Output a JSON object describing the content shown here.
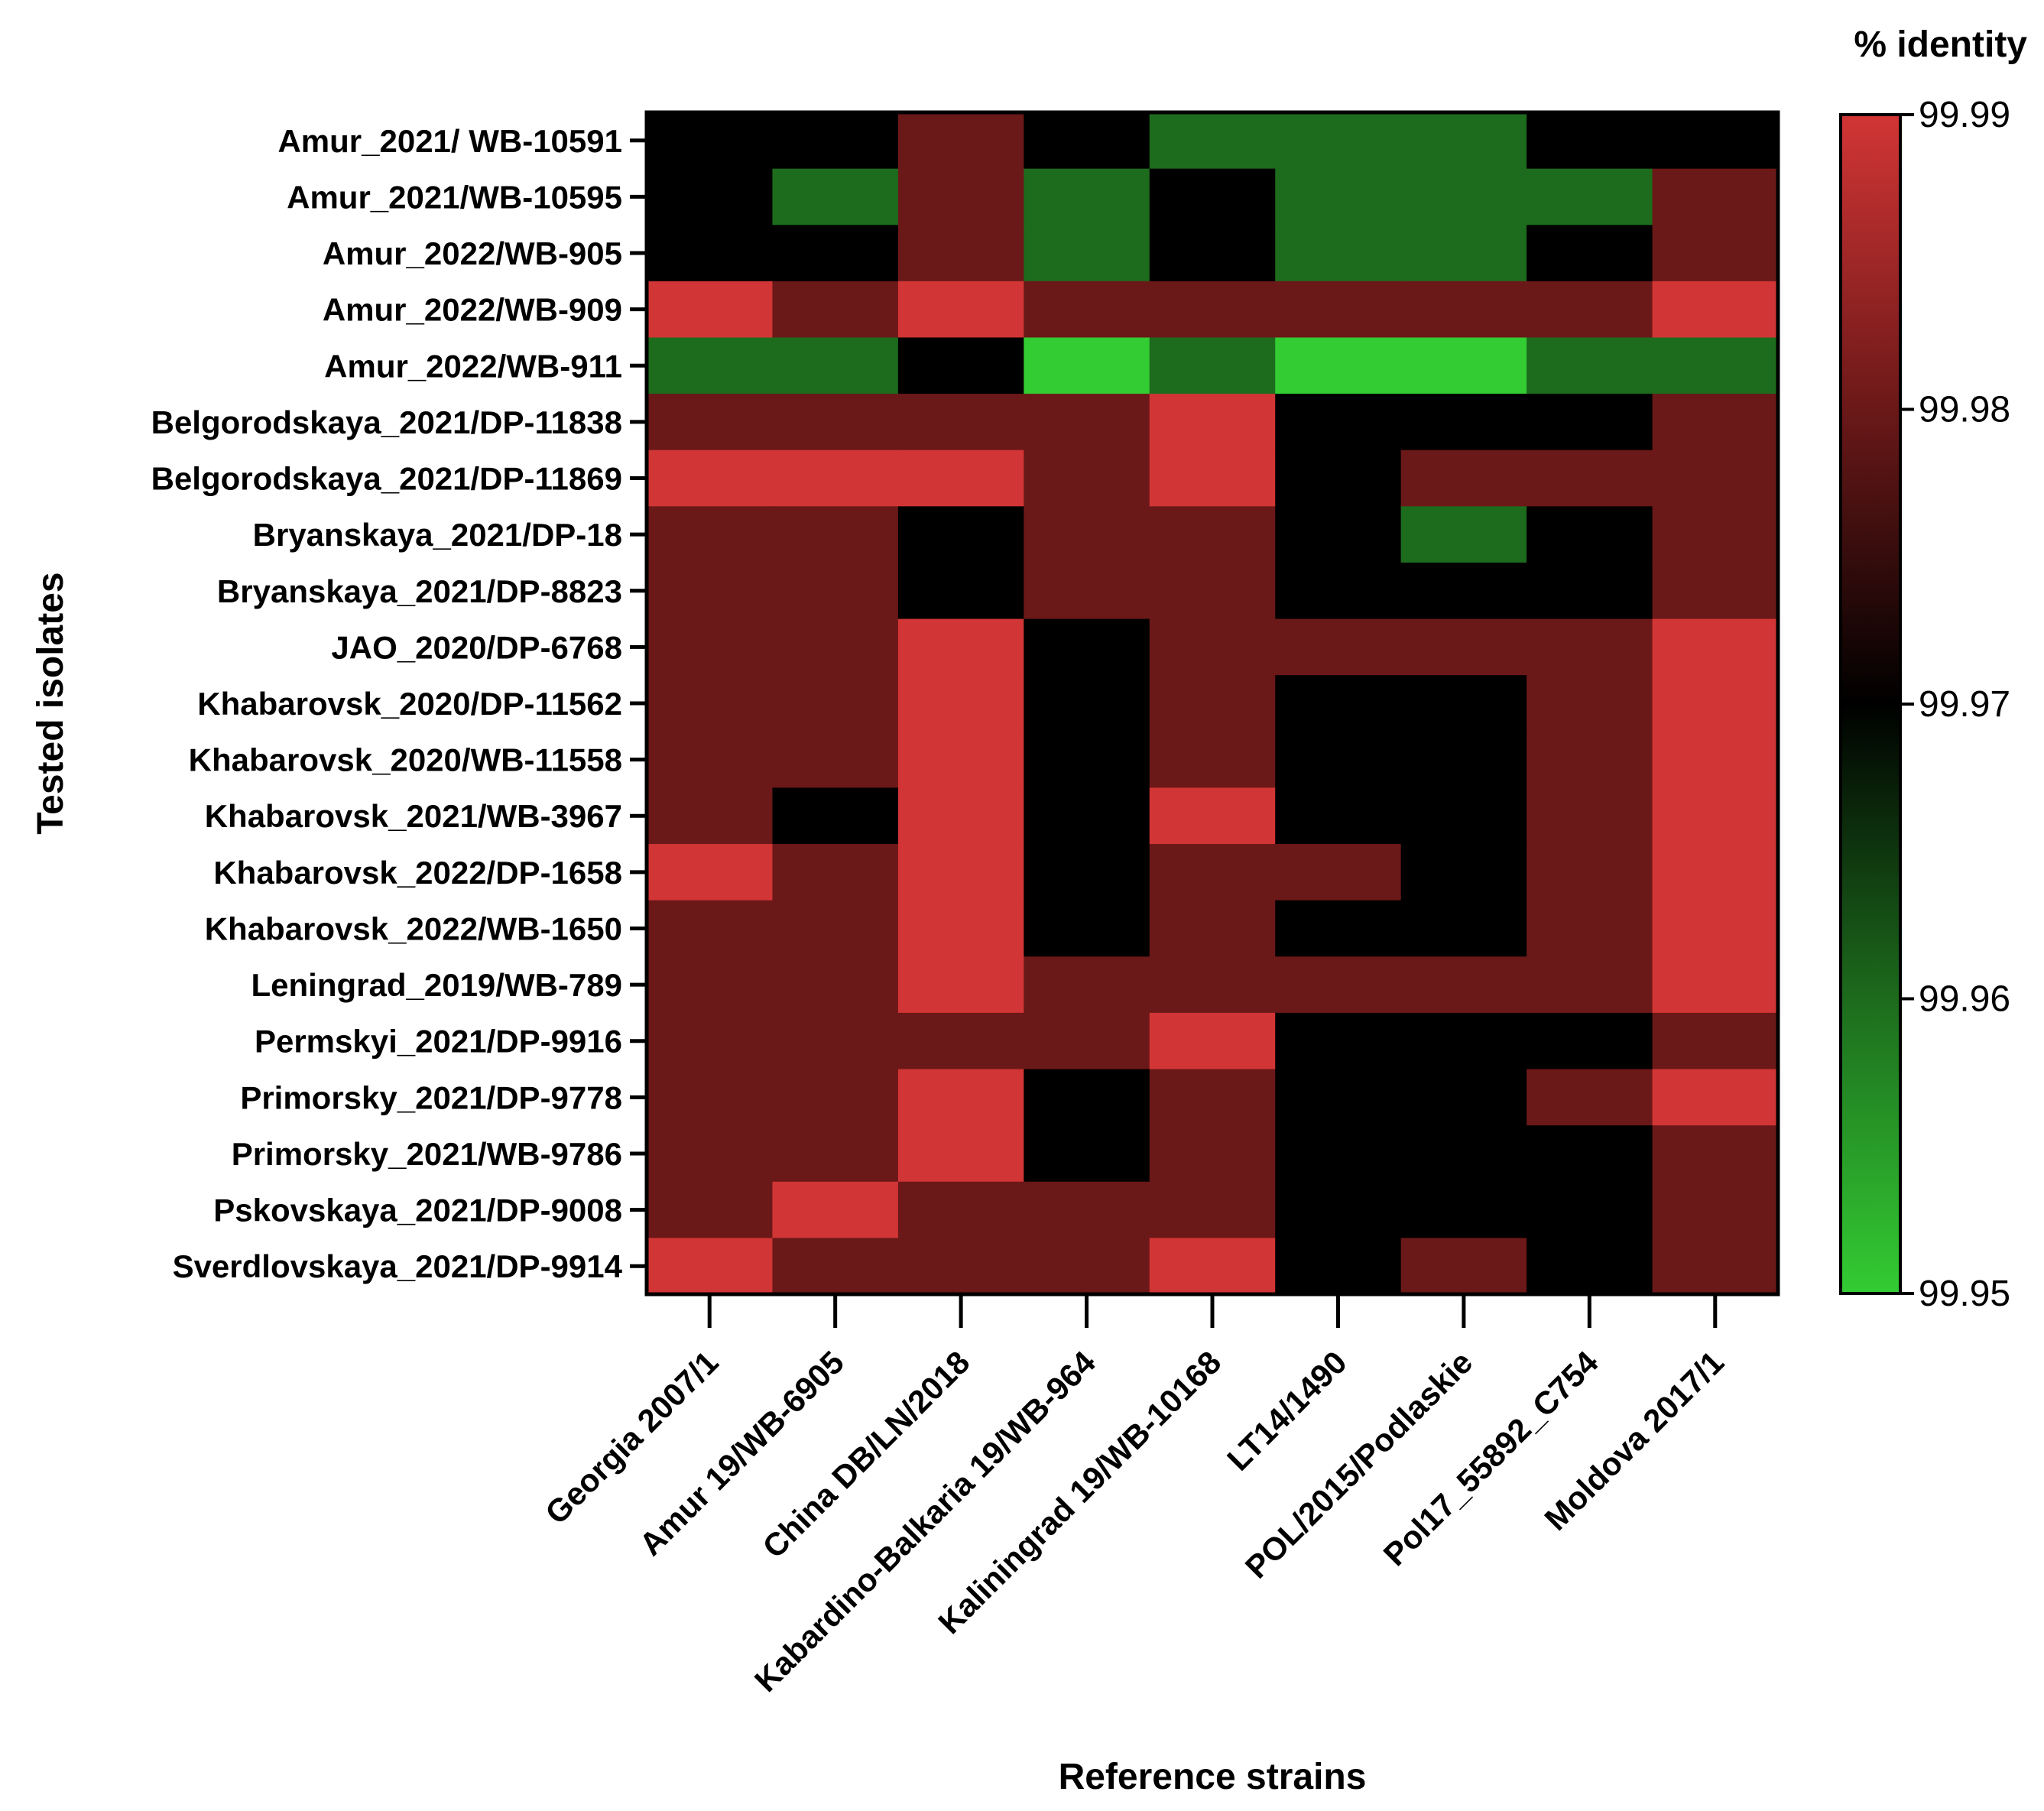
{
  "chart_data": {
    "type": "heatmap",
    "title": "",
    "xlabel": "Reference strains",
    "ylabel": "Tested isolates",
    "colorbar": {
      "title": "% identity",
      "min": 99.95,
      "max": 99.99,
      "ticks": [
        "99.99",
        "99.98",
        "99.97",
        "99.96",
        "99.95"
      ],
      "tick_values": [
        99.99,
        99.98,
        99.97,
        99.96,
        99.95
      ],
      "stops": [
        {
          "value": 99.95,
          "color": "#33cc33"
        },
        {
          "value": 99.96,
          "color": "#1d6b1d"
        },
        {
          "value": 99.97,
          "color": "#000000"
        },
        {
          "value": 99.98,
          "color": "#6b1818"
        },
        {
          "value": 99.99,
          "color": "#d23535"
        }
      ]
    },
    "x_categories": [
      "Georgia 2007/1",
      "Amur 19/WB-6905",
      "China DB/LN/2018",
      "Kabardino-Balkaria 19/WB-964",
      "Kaliningrad 19/WB-10168",
      "LT14/1490",
      "POL/2015/Podlaskie",
      "Pol17_55892_C754",
      "Moldova 2017/1"
    ],
    "y_categories": [
      "Amur_2021/ WB-10591",
      "Amur_2021/WB-10595",
      "Amur_2022/WB-905",
      "Amur_2022/WB-909",
      "Amur_2022/WB-911",
      "Belgorodskaya_2021/DP-11838",
      "Belgorodskaya_2021/DP-11869",
      "Bryanskaya_2021/DP-18",
      "Bryanskaya_2021/DP-8823",
      "JAO_2020/DP-6768",
      "Khabarovsk_2020/DP-11562",
      "Khabarovsk_2020/WB-11558",
      "Khabarovsk_2021/WB-3967",
      "Khabarovsk_2022/DP-1658",
      "Khabarovsk_2022/WB-1650",
      "Leningrad_2019/WB-789",
      "Permskyi_2021/DP-9916",
      "Primorsky_2021/DP-9778",
      "Primorsky_2021/WB-9786",
      "Pskovskaya_2021/DP-9008",
      "Sverdlovskaya_2021/DP-9914"
    ],
    "values": [
      [
        99.97,
        99.97,
        99.98,
        99.97,
        99.96,
        99.96,
        99.96,
        99.97,
        99.97
      ],
      [
        99.97,
        99.96,
        99.98,
        99.96,
        99.97,
        99.96,
        99.96,
        99.96,
        99.98
      ],
      [
        99.97,
        99.97,
        99.98,
        99.96,
        99.97,
        99.96,
        99.96,
        99.97,
        99.98
      ],
      [
        99.99,
        99.98,
        99.99,
        99.98,
        99.98,
        99.98,
        99.98,
        99.98,
        99.99
      ],
      [
        99.96,
        99.96,
        99.97,
        99.95,
        99.96,
        99.95,
        99.95,
        99.96,
        99.96
      ],
      [
        99.98,
        99.98,
        99.98,
        99.98,
        99.99,
        99.97,
        99.97,
        99.97,
        99.98
      ],
      [
        99.99,
        99.99,
        99.99,
        99.98,
        99.99,
        99.97,
        99.98,
        99.98,
        99.98
      ],
      [
        99.98,
        99.98,
        99.97,
        99.98,
        99.98,
        99.97,
        99.96,
        99.97,
        99.98
      ],
      [
        99.98,
        99.98,
        99.97,
        99.98,
        99.98,
        99.97,
        99.97,
        99.97,
        99.98
      ],
      [
        99.98,
        99.98,
        99.99,
        99.97,
        99.98,
        99.98,
        99.98,
        99.98,
        99.99
      ],
      [
        99.98,
        99.98,
        99.99,
        99.97,
        99.98,
        99.97,
        99.97,
        99.98,
        99.99
      ],
      [
        99.98,
        99.98,
        99.99,
        99.97,
        99.98,
        99.97,
        99.97,
        99.98,
        99.99
      ],
      [
        99.98,
        99.97,
        99.99,
        99.97,
        99.99,
        99.97,
        99.97,
        99.98,
        99.99
      ],
      [
        99.99,
        99.98,
        99.99,
        99.97,
        99.98,
        99.98,
        99.97,
        99.98,
        99.99
      ],
      [
        99.98,
        99.98,
        99.99,
        99.97,
        99.98,
        99.97,
        99.97,
        99.98,
        99.99
      ],
      [
        99.98,
        99.98,
        99.99,
        99.98,
        99.98,
        99.98,
        99.98,
        99.98,
        99.99
      ],
      [
        99.98,
        99.98,
        99.98,
        99.98,
        99.99,
        99.97,
        99.97,
        99.97,
        99.98
      ],
      [
        99.98,
        99.98,
        99.99,
        99.97,
        99.98,
        99.97,
        99.97,
        99.98,
        99.99
      ],
      [
        99.98,
        99.98,
        99.99,
        99.97,
        99.98,
        99.97,
        99.97,
        99.97,
        99.98
      ],
      [
        99.98,
        99.99,
        99.98,
        99.98,
        99.98,
        99.97,
        99.97,
        99.97,
        99.98
      ],
      [
        99.99,
        99.98,
        99.98,
        99.98,
        99.99,
        99.97,
        99.98,
        99.97,
        99.98
      ]
    ]
  }
}
